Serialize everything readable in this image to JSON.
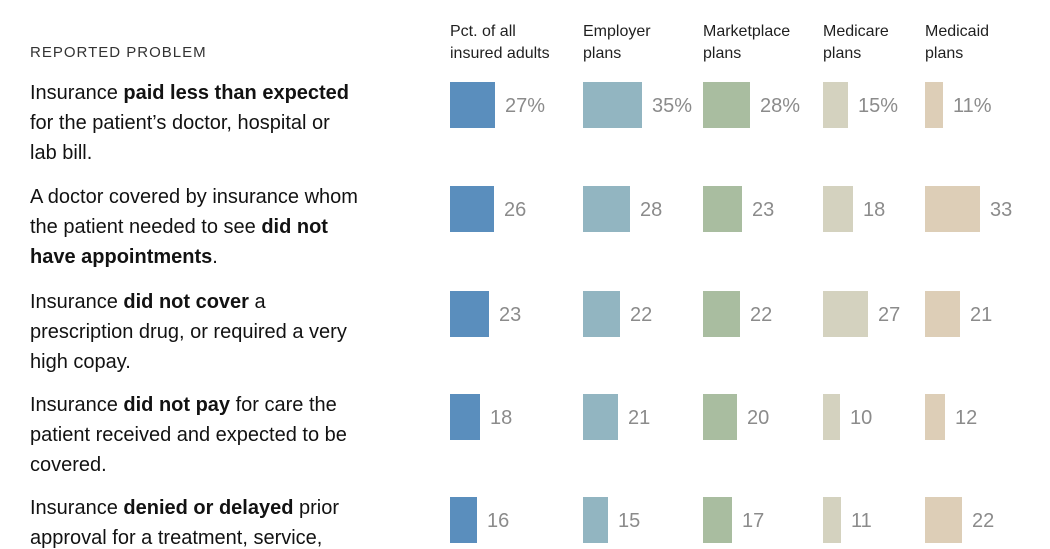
{
  "header": {
    "reported_problem": "REPORTED PROBLEM",
    "columns": [
      "Pct. of all\ninsured adults",
      "Employer\nplans",
      "Marketplace\nplans",
      "Medicare\nplans",
      "Medicaid\nplans"
    ]
  },
  "colors": {
    "columns": [
      "#5a8ebd",
      "#92b5c1",
      "#a9bda0",
      "#d4d2bf",
      "#ddceb7"
    ],
    "value_label": "#8b8b8b",
    "body_text": "#121212",
    "header_text": "#333333"
  },
  "rows": [
    {
      "problem": [
        {
          "text": "Insurance ",
          "bold": false
        },
        {
          "text": "paid less than expected",
          "bold": true
        },
        {
          "text": "\nfor the patient’s doctor, hospital or\nlab bill.",
          "bold": false
        }
      ],
      "values": [
        27,
        35,
        28,
        15,
        11
      ],
      "labels": [
        "27%",
        "35%",
        "28%",
        "15%",
        "11%"
      ]
    },
    {
      "problem": [
        {
          "text": "A doctor covered by insurance whom\nthe patient needed to see ",
          "bold": false
        },
        {
          "text": "did not\nhave appointments",
          "bold": true
        },
        {
          "text": ".",
          "bold": false
        }
      ],
      "values": [
        26,
        28,
        23,
        18,
        33
      ],
      "labels": [
        "26",
        "28",
        "23",
        "18",
        "33"
      ]
    },
    {
      "problem": [
        {
          "text": "Insurance ",
          "bold": false
        },
        {
          "text": "did not cover",
          "bold": true
        },
        {
          "text": " a\nprescription drug, or required a very\nhigh copay.",
          "bold": false
        }
      ],
      "values": [
        23,
        22,
        22,
        27,
        21
      ],
      "labels": [
        "23",
        "22",
        "22",
        "27",
        "21"
      ]
    },
    {
      "problem": [
        {
          "text": "Insurance ",
          "bold": false
        },
        {
          "text": "did not pay",
          "bold": true
        },
        {
          "text": " for care the\npatient received and expected to be\ncovered.",
          "bold": false
        }
      ],
      "values": [
        18,
        21,
        20,
        10,
        12
      ],
      "labels": [
        "18",
        "21",
        "20",
        "10",
        "12"
      ]
    },
    {
      "problem": [
        {
          "text": "Insurance ",
          "bold": false
        },
        {
          "text": "denied or delayed",
          "bold": true
        },
        {
          "text": " prior\napproval for a treatment, service,",
          "bold": false
        }
      ],
      "values": [
        16,
        15,
        17,
        11,
        22
      ],
      "labels": [
        "16",
        "15",
        "17",
        "11",
        "22"
      ]
    }
  ],
  "chart_data": {
    "type": "bar",
    "subtype": "proportional-square-matrix",
    "title": "",
    "row_header": "REPORTED PROBLEM",
    "categories": [
      "Insurance paid less than expected for the patient’s doctor, hospital or lab bill.",
      "A doctor covered by insurance whom the patient needed to see did not have appointments.",
      "Insurance did not cover a prescription drug, or required a very high copay.",
      "Insurance did not pay for care the patient received and expected to be covered.",
      "Insurance denied or delayed prior approval for a treatment, service,"
    ],
    "series": [
      {
        "name": "Pct. of all insured adults",
        "color": "#5a8ebd",
        "values": [
          27,
          26,
          23,
          18,
          16
        ]
      },
      {
        "name": "Employer plans",
        "color": "#92b5c1",
        "values": [
          35,
          28,
          22,
          21,
          15
        ]
      },
      {
        "name": "Marketplace plans",
        "color": "#a9bda0",
        "values": [
          28,
          23,
          22,
          20,
          17
        ]
      },
      {
        "name": "Medicare plans",
        "color": "#d4d2bf",
        "values": [
          15,
          18,
          27,
          10,
          11
        ]
      },
      {
        "name": "Medicaid plans",
        "color": "#ddceb7",
        "values": [
          11,
          33,
          21,
          12,
          22
        ]
      }
    ],
    "unit": "percent",
    "value_suffix_shown_on_first_row_only": "%",
    "legend_position": "none",
    "grid": false,
    "mark_encoding": "square width proportional to value, constant height"
  }
}
